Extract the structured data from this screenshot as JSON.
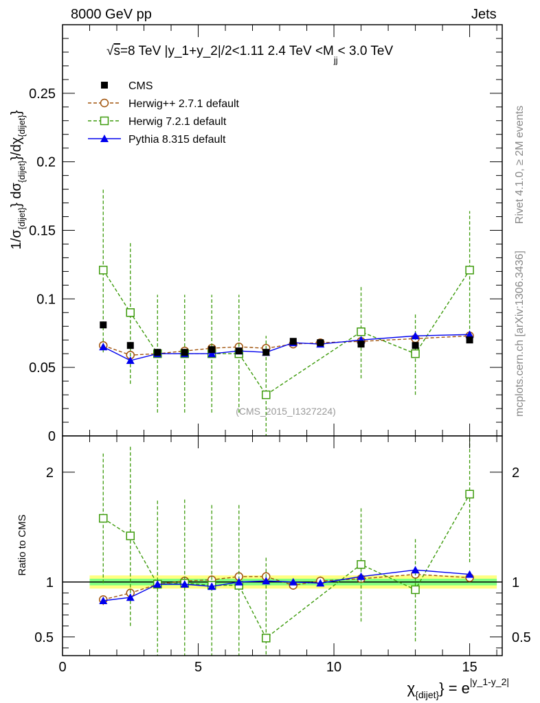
{
  "header": {
    "left": "8000 GeV pp",
    "right": "Jets",
    "side_top": "Rivet 4.1.0, ≥ 2M events",
    "side_bottom": "mcplots.cern.ch [arXiv:1306.3436]"
  },
  "colors": {
    "cms": "#000000",
    "herwigpp": "#a0520a",
    "herwig7": "#3c9a0a",
    "pythia": "#0000ee",
    "band_inner": "#80ff80",
    "band_outer": "#ffff80"
  },
  "chart_data": [
    {
      "type": "scatter",
      "panel": "main",
      "title_parts": [
        "√",
        "s",
        "=8 TeV |y_1+y_2|/2<1.11 2.4 TeV <M",
        "jj",
        "< 3.0 TeV"
      ],
      "ylabel_parts": [
        "1/σ",
        "{dijet}",
        "} dσ",
        "{dijet}",
        "}/dχ",
        "{dijet}",
        "}"
      ],
      "watermark": "(CMS_2015_I1327224)",
      "xlim": [
        0,
        16.2
      ],
      "ylim": [
        0,
        0.3
      ],
      "yticks": [
        0.05,
        0.1,
        0.15,
        0.2,
        0.25
      ],
      "ytick_labels": [
        "0.05",
        "0.1",
        "0.15",
        "0.2",
        "0.25"
      ],
      "ytick_bottom_label": "0",
      "legend_position": "top-left",
      "series": [
        {
          "key": "cms",
          "name": "CMS",
          "marker": "filled-square",
          "line": "none",
          "x": [
            1.5,
            2.5,
            3.5,
            4.5,
            5.5,
            6.5,
            7.5,
            8.5,
            9.5,
            11.0,
            13.0,
            15.0
          ],
          "y": [
            0.081,
            0.066,
            0.061,
            0.061,
            0.063,
            0.062,
            0.061,
            0.069,
            0.068,
            0.067,
            0.066,
            0.07
          ],
          "yerr": [
            0.0015,
            0.0015,
            0.0015,
            0.0015,
            0.0015,
            0.0015,
            0.0015,
            0.0015,
            0.0015,
            0.0015,
            0.0015,
            0.0015
          ]
        },
        {
          "key": "herwigpp",
          "name": "Herwig++ 2.7.1 default",
          "marker": "open-circle",
          "line": "dashed",
          "x": [
            1.5,
            2.5,
            3.5,
            4.5,
            5.5,
            6.5,
            7.5,
            8.5,
            9.5,
            11.0,
            13.0,
            15.0
          ],
          "y": [
            0.066,
            0.059,
            0.06,
            0.062,
            0.064,
            0.065,
            0.064,
            0.067,
            0.068,
            0.069,
            0.071,
            0.073
          ],
          "yerr": [
            0.002,
            0.002,
            0.002,
            0.002,
            0.002,
            0.002,
            0.002,
            0.002,
            0.002,
            0.002,
            0.002,
            0.002
          ]
        },
        {
          "key": "herwig7",
          "name": "Herwig 7.2.1 default",
          "marker": "open-square",
          "line": "dashed",
          "x": [
            1.5,
            2.5,
            3.5,
            4.5,
            5.5,
            6.5,
            7.5,
            11.0,
            13.0,
            15.0
          ],
          "y": [
            0.121,
            0.09,
            0.06,
            0.06,
            0.06,
            0.06,
            0.03,
            0.076,
            0.06,
            0.121
          ],
          "yerr": [
            0.06,
            0.052,
            0.043,
            0.043,
            0.043,
            0.043,
            0.043,
            0.034,
            0.03,
            0.043
          ]
        },
        {
          "key": "pythia",
          "name": "Pythia 8.315 default",
          "marker": "filled-triangle",
          "line": "solid",
          "x": [
            1.5,
            2.5,
            3.5,
            4.5,
            5.5,
            6.5,
            7.5,
            8.5,
            9.5,
            11.0,
            13.0,
            15.0
          ],
          "y": [
            0.065,
            0.055,
            0.06,
            0.06,
            0.06,
            0.062,
            0.061,
            0.068,
            0.067,
            0.07,
            0.073,
            0.074
          ],
          "yerr": [
            0.001,
            0.001,
            0.001,
            0.001,
            0.001,
            0.001,
            0.001,
            0.001,
            0.001,
            0.001,
            0.001,
            0.001
          ]
        }
      ]
    },
    {
      "type": "scatter",
      "panel": "ratio",
      "ylabel": "Ratio to CMS",
      "xlabel_parts": [
        "χ",
        "{dijet}",
        "} = e",
        "|y_1-y_2|"
      ],
      "xlim": [
        0,
        16.2
      ],
      "ylim": [
        0.33,
        2.33
      ],
      "xticks": [
        0,
        5,
        10,
        15
      ],
      "xtick_labels": [
        "0",
        "5",
        "10",
        "15"
      ],
      "yticks": [
        0.5,
        1,
        2
      ],
      "ytick_labels": [
        "0.5",
        "1",
        "2"
      ],
      "band": {
        "x": [
          1.0,
          16.0
        ],
        "inner_lo": 0.97,
        "inner_hi": 1.03,
        "outer_lo": 0.94,
        "outer_hi": 1.06
      },
      "series": [
        {
          "key": "herwigpp",
          "name": "Herwig++ 2.7.1 default",
          "x": [
            1.5,
            2.5,
            3.5,
            4.5,
            5.5,
            6.5,
            7.5,
            8.5,
            9.5,
            11.0,
            13.0,
            15.0
          ],
          "y": [
            0.84,
            0.9,
            0.98,
            1.01,
            1.02,
            1.05,
            1.05,
            0.97,
            1.01,
            1.03,
            1.07,
            1.04
          ],
          "yerr": [
            0.05,
            0.04,
            0.04,
            0.04,
            0.04,
            0.04,
            0.04,
            0.04,
            0.04,
            0.04,
            0.04,
            0.04
          ]
        },
        {
          "key": "herwig7",
          "name": "Herwig 7.2.1 default",
          "x": [
            1.5,
            2.5,
            3.5,
            4.5,
            5.5,
            6.5,
            7.5,
            11.0,
            13.0,
            15.0
          ],
          "y": [
            1.58,
            1.42,
            0.98,
            0.99,
            0.97,
            0.97,
            0.49,
            1.16,
            0.93,
            1.8
          ],
          "yerr": [
            0.59,
            0.82,
            0.77,
            0.77,
            0.75,
            0.75,
            0.75,
            0.52,
            0.47,
            0.62
          ]
        },
        {
          "key": "pythia",
          "name": "Pythia 8.315 default",
          "x": [
            1.5,
            2.5,
            3.5,
            4.5,
            5.5,
            6.5,
            7.5,
            8.5,
            9.5,
            11.0,
            13.0,
            15.0
          ],
          "y": [
            0.83,
            0.86,
            0.98,
            0.98,
            0.96,
            1.0,
            1.01,
            1.0,
            0.99,
            1.05,
            1.11,
            1.07
          ],
          "yerr": [
            0.01,
            0.01,
            0.01,
            0.01,
            0.01,
            0.01,
            0.01,
            0.01,
            0.01,
            0.01,
            0.01,
            0.01
          ]
        }
      ]
    }
  ]
}
